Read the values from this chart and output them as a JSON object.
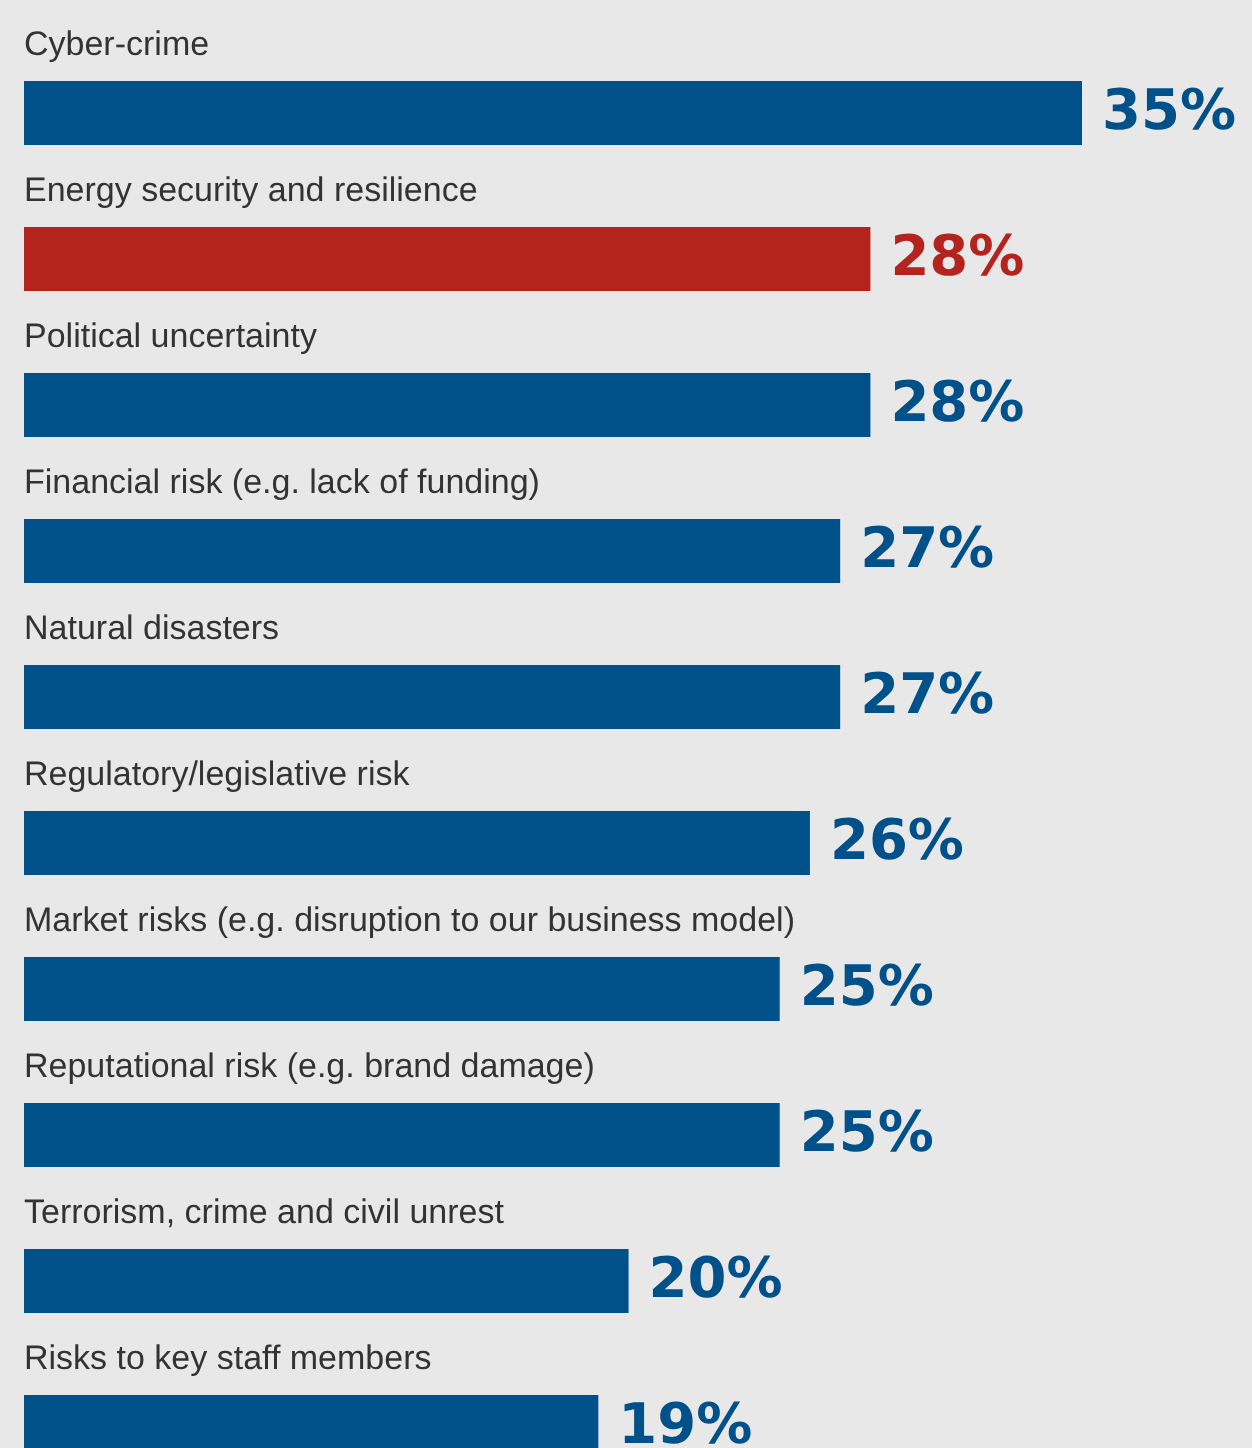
{
  "chart_data": {
    "type": "bar",
    "orientation": "horizontal",
    "categories": [
      "Cyber-crime",
      "Energy security and resilience",
      "Political uncertainty",
      "Financial risk (e.g. lack of funding)",
      "Natural disasters",
      "Regulatory/legislative risk",
      "Market risks (e.g. disruption to our business model)",
      "Reputational risk (e.g. brand damage)",
      "Terrorism, crime and civil unrest",
      "Risks to key staff members"
    ],
    "values": [
      35,
      28,
      28,
      27,
      27,
      26,
      25,
      25,
      20,
      19
    ],
    "colors": [
      "#00508a",
      "#b5231f",
      "#00508a",
      "#00508a",
      "#00508a",
      "#00508a",
      "#00508a",
      "#00508a",
      "#00508a",
      "#00508a"
    ],
    "value_labels": [
      "35%",
      "28%",
      "28%",
      "27%",
      "27%",
      "26%",
      "25%",
      "25%",
      "20%",
      "19%"
    ]
  }
}
